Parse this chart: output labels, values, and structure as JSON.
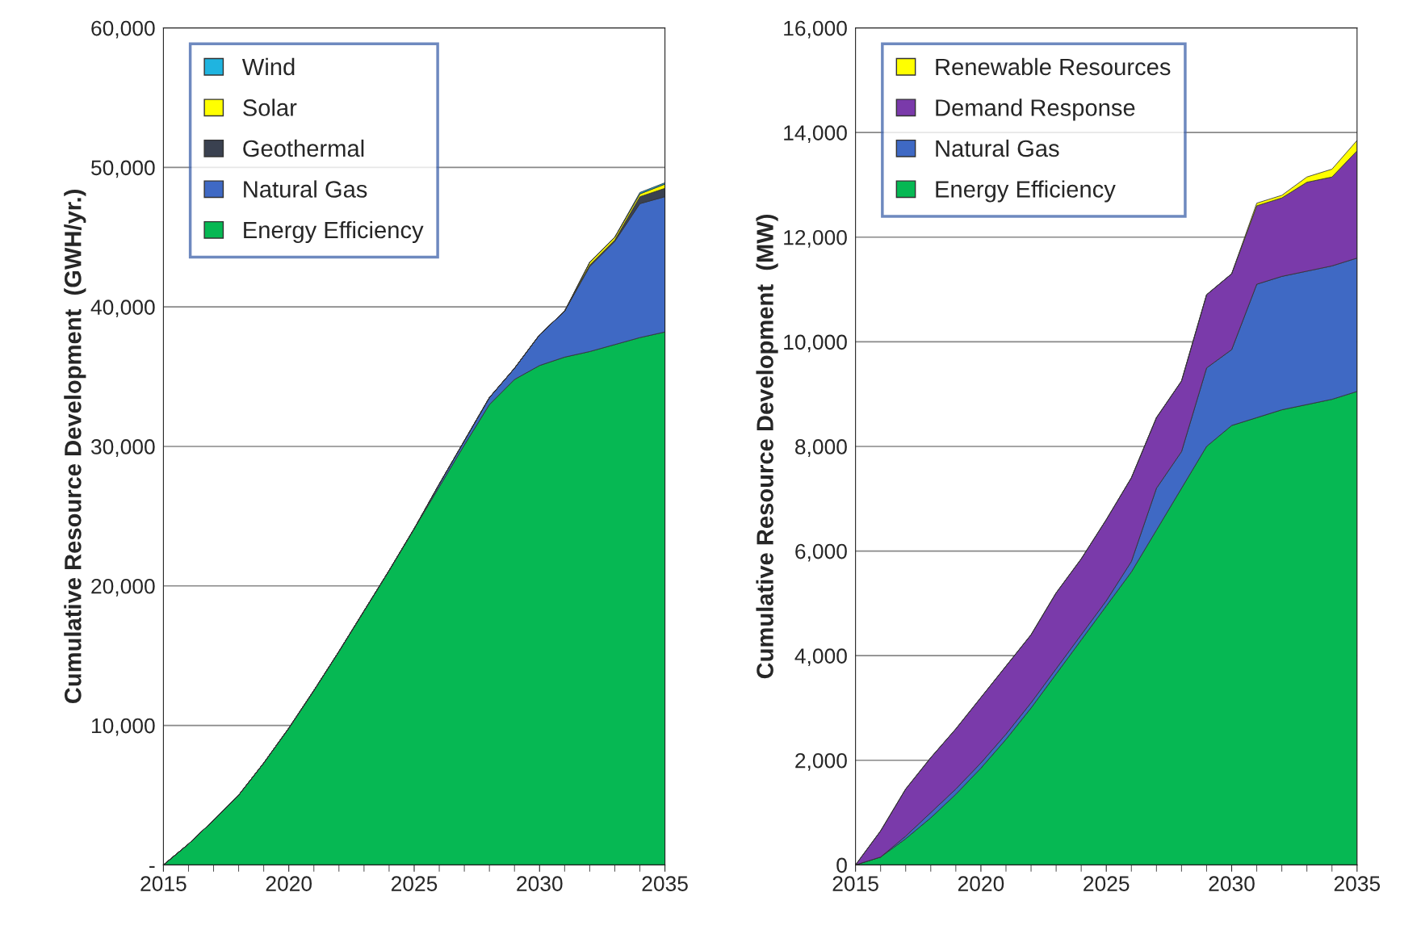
{
  "chart_data": [
    {
      "type": "area",
      "stacked": true,
      "ylabel": "Cumulative Resource Development  (GWH/yr.)",
      "x": [
        2015,
        2016,
        2017,
        2018,
        2019,
        2020,
        2021,
        2022,
        2023,
        2024,
        2025,
        2026,
        2027,
        2028,
        2029,
        2030,
        2031,
        2032,
        2033,
        2034,
        2035
      ],
      "series": [
        {
          "name": "Energy Efficiency",
          "color": "#06b853",
          "values": [
            0,
            1500,
            3200,
            5000,
            7300,
            9800,
            12500,
            15300,
            18200,
            21100,
            24100,
            27100,
            30100,
            33000,
            34800,
            35800,
            36400,
            36800,
            37300,
            37800,
            38200
          ]
        },
        {
          "name": "Natural Gas",
          "color": "#3f69c4",
          "values": [
            0,
            0,
            0,
            0,
            0,
            0,
            0,
            0,
            0,
            0,
            0,
            200,
            300,
            500,
            800,
            2200,
            3300,
            6100,
            7400,
            9600,
            9700
          ]
        },
        {
          "name": "Geothermal",
          "color": "#3a4150",
          "values": [
            0,
            0,
            0,
            0,
            0,
            0,
            0,
            0,
            0,
            0,
            0,
            0,
            0,
            0,
            0,
            0,
            0,
            100,
            100,
            500,
            600
          ]
        },
        {
          "name": "Solar",
          "color": "#ffff00",
          "values": [
            0,
            0,
            0,
            0,
            0,
            0,
            0,
            0,
            0,
            0,
            0,
            0,
            0,
            0,
            0,
            0,
            0,
            200,
            200,
            200,
            300
          ]
        },
        {
          "name": "Wind",
          "color": "#1fb4e0",
          "values": [
            0,
            0,
            0,
            0,
            0,
            0,
            0,
            0,
            0,
            0,
            0,
            0,
            0,
            0,
            0,
            0,
            0,
            0,
            0,
            100,
            100
          ]
        }
      ],
      "xlim": [
        2015,
        2035
      ],
      "xticks": [
        2015,
        2020,
        2025,
        2030,
        2035
      ],
      "ylim": [
        0,
        60000
      ],
      "yticks": [
        {
          "value": 0,
          "label": "-"
        },
        {
          "value": 10000,
          "label": "10,000"
        },
        {
          "value": 20000,
          "label": "20,000"
        },
        {
          "value": 30000,
          "label": "30,000"
        },
        {
          "value": 40000,
          "label": "40,000"
        },
        {
          "value": 50000,
          "label": "50,000"
        },
        {
          "value": 60000,
          "label": "60,000"
        }
      ],
      "grid": "y",
      "legend": "top left"
    },
    {
      "type": "area",
      "stacked": true,
      "ylabel": "Cumulative Resource Development  (MW)",
      "x": [
        2015,
        2016,
        2017,
        2018,
        2019,
        2020,
        2021,
        2022,
        2023,
        2024,
        2025,
        2026,
        2027,
        2028,
        2029,
        2030,
        2031,
        2032,
        2033,
        2034,
        2035
      ],
      "series": [
        {
          "name": "Energy Efficiency",
          "color": "#06b853",
          "values": [
            0,
            150,
            500,
            900,
            1350,
            1850,
            2400,
            3000,
            3650,
            4300,
            4950,
            5600,
            6400,
            7200,
            8000,
            8400,
            8550,
            8700,
            8800,
            8900,
            9050
          ]
        },
        {
          "name": "Natural Gas",
          "color": "#3f69c4",
          "values": [
            0,
            0,
            50,
            100,
            100,
            100,
            100,
            100,
            100,
            100,
            100,
            200,
            800,
            700,
            1500,
            1450,
            2550,
            2550,
            2550,
            2550,
            2550
          ]
        },
        {
          "name": "Demand Response",
          "color": "#7a3aaa",
          "values": [
            0,
            500,
            900,
            1050,
            1150,
            1250,
            1300,
            1300,
            1450,
            1450,
            1550,
            1600,
            1350,
            1350,
            1400,
            1450,
            1500,
            1500,
            1700,
            1700,
            2050
          ]
        },
        {
          "name": "Renewable Resources",
          "color": "#ffff00",
          "values": [
            0,
            0,
            0,
            0,
            0,
            0,
            0,
            0,
            0,
            0,
            0,
            0,
            0,
            0,
            0,
            0,
            50,
            50,
            100,
            150,
            200
          ]
        }
      ],
      "xlim": [
        2015,
        2035
      ],
      "xticks": [
        2015,
        2020,
        2025,
        2030,
        2035
      ],
      "ylim": [
        0,
        16000
      ],
      "yticks": [
        0,
        {
          "value": 2000,
          "label": "2,000"
        },
        {
          "value": 4000,
          "label": "4,000"
        },
        {
          "value": 6000,
          "label": "6,000"
        },
        {
          "value": 8000,
          "label": "8,000"
        },
        {
          "value": 10000,
          "label": "10,000"
        },
        {
          "value": 12000,
          "label": "12,000"
        },
        {
          "value": 14000,
          "label": "14,000"
        },
        {
          "value": 16000,
          "label": "16,000"
        }
      ],
      "grid": "y",
      "legend": "top left"
    }
  ]
}
